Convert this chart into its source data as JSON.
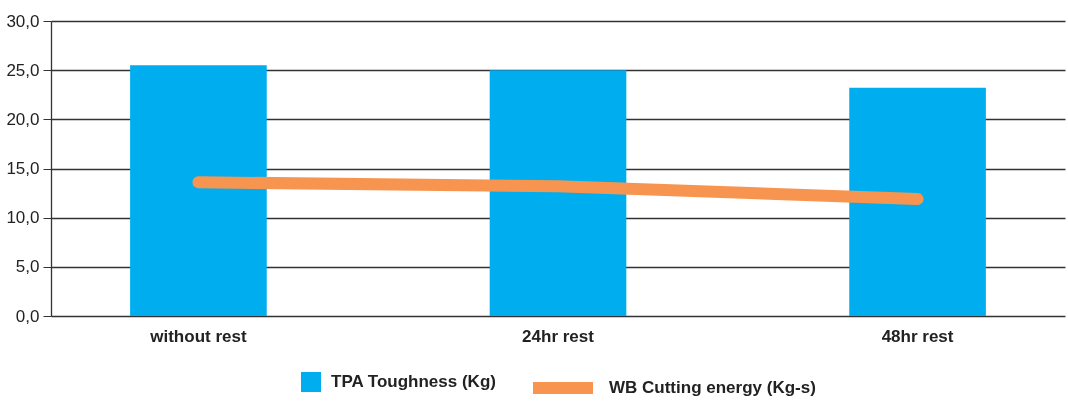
{
  "chart_data": {
    "type": "bar",
    "categories": [
      "without rest",
      "24hr rest",
      "48hr rest"
    ],
    "series": [
      {
        "name": "TPA Toughness (Kg)",
        "color": "#00aeef",
        "values": [
          25.5,
          25.0,
          23.2
        ]
      },
      {
        "name": "WB Cutting energy (Kg-s)",
        "color": "#f79550",
        "type": "line",
        "values": [
          13.6,
          13.2,
          11.9
        ]
      }
    ],
    "ylim": [
      0,
      30
    ],
    "yticks": [
      {
        "value": 0,
        "label": "0,0"
      },
      {
        "value": 5,
        "label": "5,0"
      },
      {
        "value": 10,
        "label": "10,0"
      },
      {
        "value": 15,
        "label": "15,0"
      },
      {
        "value": 20,
        "label": "20,0"
      },
      {
        "value": 25,
        "label": "25,0"
      },
      {
        "value": 30,
        "label": "30,0"
      }
    ],
    "grid": "y",
    "legend": "bottom"
  }
}
